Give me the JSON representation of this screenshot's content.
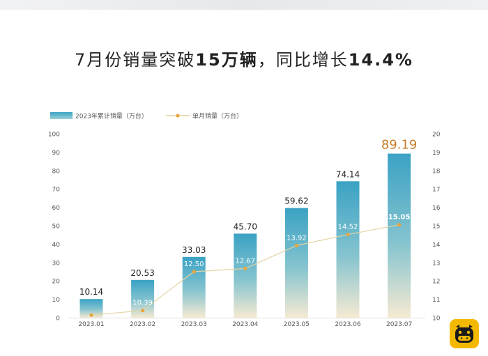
{
  "headline": {
    "part1": "7月份销量突破",
    "bold1": "15万辆",
    "part2": "，同比增长",
    "bold2": "14.4%"
  },
  "chart_data": {
    "type": "bar",
    "categories": [
      "2023.01",
      "2023.02",
      "2023.03",
      "2023.04",
      "2023.05",
      "2023.06",
      "2023.07"
    ],
    "series": [
      {
        "name": "2023年累计销量（万台）",
        "type": "bar",
        "axis": "left",
        "values": [
          10.14,
          20.53,
          33.03,
          45.7,
          59.62,
          74.14,
          89.19
        ],
        "labels": [
          "10.14",
          "20.53",
          "33.03",
          "45.70",
          "59.62",
          "74.14",
          "89.19"
        ]
      },
      {
        "name": "单月销量（万台）",
        "type": "line",
        "axis": "right",
        "values": [
          10.14,
          10.39,
          12.5,
          12.67,
          13.92,
          14.52,
          15.05
        ],
        "labels": [
          "",
          "10.39",
          "12.50",
          "12.67",
          "13.92",
          "14.52",
          "15.05"
        ]
      }
    ],
    "y_left": {
      "ylim": [
        0,
        100
      ],
      "ticks": [
        0,
        10,
        20,
        30,
        40,
        50,
        60,
        70,
        80,
        90,
        100
      ]
    },
    "y_right": {
      "ylim": [
        10,
        20
      ],
      "ticks": [
        10,
        11,
        12,
        13,
        14,
        15,
        16,
        17,
        18,
        19,
        20
      ]
    },
    "legend_position": "top-left",
    "grid": false,
    "colors": {
      "bar_top": "#3aa2c4",
      "bar_bottom": "#f6ead2",
      "line": "#e3d4a4",
      "marker": "#e9a63a",
      "highlight_label": "#c87c2a",
      "axis_text": "#555555"
    }
  }
}
